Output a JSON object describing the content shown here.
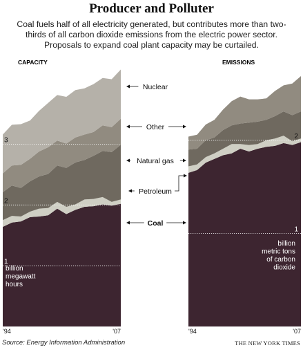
{
  "header": {
    "title": "Producer and Polluter",
    "subtitle": "Coal fuels half of all electricity generated, but contributes more than two-thirds of all carbon dioxide emissions from the electric power sector. Proposals to expand coal plant capacity may be curtailed."
  },
  "footer": {
    "source": "Source: Energy Information Administration",
    "credit": "THE NEW YORK TIMES"
  },
  "colors": {
    "Coal": "#3d2530",
    "Petroleum": "#cfcfc4",
    "Natural gas": "#6f695f",
    "Other": "#918b80",
    "Nuclear": "#b5b1a9"
  },
  "legend": {
    "labels": [
      "Nuclear",
      "Other",
      "Natural gas",
      "Petroleum",
      "Coal"
    ]
  },
  "chart_data": [
    {
      "type": "area",
      "stacked": true,
      "title": "CAPACITY",
      "unit_label": "billion megawatt hours",
      "x": [
        1994,
        1995,
        1996,
        1997,
        1998,
        1999,
        2000,
        2001,
        2002,
        2003,
        2004,
        2005,
        2006,
        2007
      ],
      "x_tick_labels": [
        "'94",
        "'07"
      ],
      "y_tick_labels": [
        "1",
        "2",
        "3"
      ],
      "ylim": [
        0,
        4.52
      ],
      "grid": "dotted lines at 1, 2 and 3",
      "series": [
        {
          "name": "Coal",
          "values": [
            1.64,
            1.71,
            1.73,
            1.8,
            1.81,
            1.83,
            1.94,
            1.85,
            1.92,
            1.97,
            1.98,
            2.01,
            1.99,
            2.02
          ]
        },
        {
          "name": "Petroleum",
          "values": [
            0.11,
            0.11,
            0.08,
            0.09,
            0.13,
            0.12,
            0.11,
            0.12,
            0.09,
            0.12,
            0.12,
            0.12,
            0.06,
            0.07
          ]
        },
        {
          "name": "Natural gas",
          "values": [
            0.46,
            0.5,
            0.47,
            0.5,
            0.53,
            0.56,
            0.6,
            0.64,
            0.69,
            0.65,
            0.71,
            0.76,
            0.82,
            0.9
          ]
        },
        {
          "name": "Other",
          "values": [
            0.31,
            0.33,
            0.38,
            0.37,
            0.41,
            0.44,
            0.41,
            0.4,
            0.41,
            0.42,
            0.39,
            0.42,
            0.41,
            0.43
          ]
        },
        {
          "name": "Nuclear",
          "values": [
            0.64,
            0.67,
            0.67,
            0.63,
            0.67,
            0.73,
            0.75,
            0.77,
            0.78,
            0.76,
            0.79,
            0.78,
            0.79,
            0.81
          ]
        }
      ]
    },
    {
      "type": "area",
      "stacked": true,
      "title": "EMISSIONS",
      "unit_label": "billion metric tons of carbon dioxide",
      "x": [
        1994,
        1995,
        1996,
        1997,
        1998,
        1999,
        2000,
        2001,
        2002,
        2003,
        2004,
        2005,
        2006,
        2007
      ],
      "x_tick_labels": [
        "'94",
        "'07"
      ],
      "y_tick_labels": [
        "1",
        "2"
      ],
      "ylim": [
        0,
        2.95
      ],
      "grid": "dotted lines at 1 and 2",
      "series": [
        {
          "name": "Coal",
          "values": [
            1.65,
            1.68,
            1.76,
            1.8,
            1.84,
            1.86,
            1.91,
            1.88,
            1.91,
            1.93,
            1.94,
            1.97,
            1.95,
            1.98
          ]
        },
        {
          "name": "Petroleum",
          "values": [
            0.07,
            0.06,
            0.06,
            0.06,
            0.07,
            0.1,
            0.05,
            0.07,
            0.05,
            0.07,
            0.08,
            0.08,
            0.04,
            0.04
          ]
        },
        {
          "name": "Natural gas",
          "values": [
            0.18,
            0.17,
            0.18,
            0.17,
            0.2,
            0.2,
            0.22,
            0.24,
            0.24,
            0.22,
            0.24,
            0.26,
            0.28,
            0.29
          ]
        },
        {
          "name": "Other",
          "values": [
            0.14,
            0.15,
            0.17,
            0.19,
            0.22,
            0.26,
            0.29,
            0.25,
            0.24,
            0.23,
            0.27,
            0.28,
            0.34,
            0.38
          ]
        }
      ]
    }
  ]
}
